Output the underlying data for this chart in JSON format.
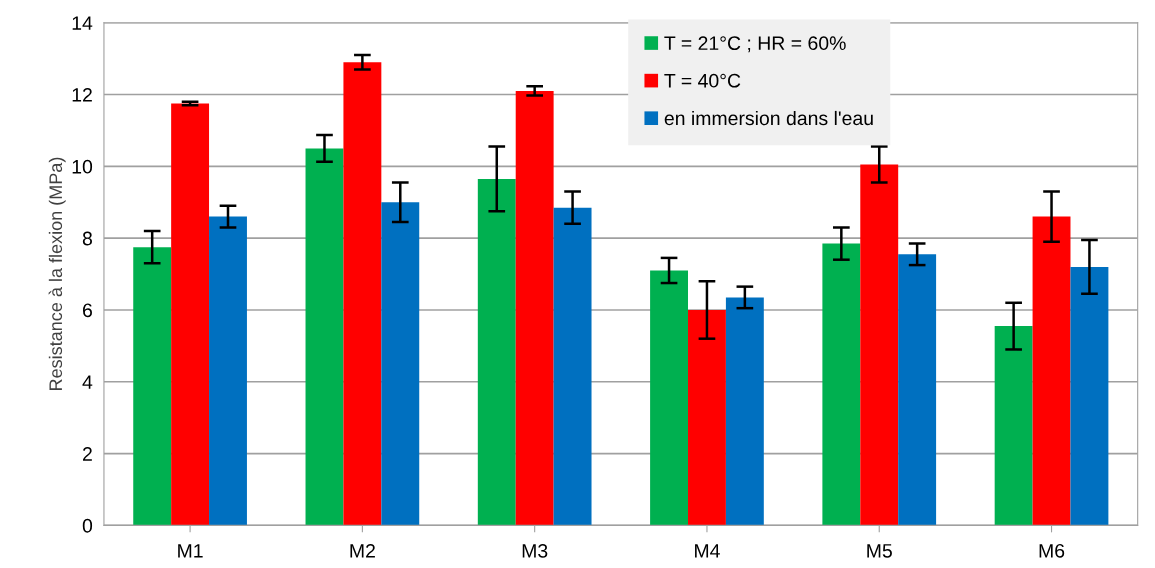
{
  "chart_data": {
    "type": "bar",
    "ylabel": "Resistance à la flexion (MPa)",
    "categories": [
      "M1",
      "M2",
      "M3",
      "M4",
      "M5",
      "M6"
    ],
    "series": [
      {
        "name": "T = 21°C ; HR = 60%",
        "color": "#00b050",
        "values": [
          7.75,
          10.5,
          9.65,
          7.1,
          7.85,
          5.55
        ],
        "errors": [
          0.45,
          0.37,
          0.9,
          0.35,
          0.45,
          0.65
        ]
      },
      {
        "name": "T = 40°C",
        "color": "#ff0000",
        "values": [
          11.75,
          12.9,
          12.1,
          6.0,
          10.05,
          8.6
        ],
        "errors": [
          0.05,
          0.2,
          0.13,
          0.8,
          0.5,
          0.7
        ]
      },
      {
        "name": "en immersion dans l'eau",
        "color": "#0070c0",
        "values": [
          8.6,
          9.0,
          8.85,
          6.35,
          7.55,
          7.2
        ],
        "errors": [
          0.3,
          0.55,
          0.45,
          0.3,
          0.3,
          0.75
        ]
      }
    ],
    "ylim": [
      0,
      14
    ],
    "yticks": [
      0,
      2,
      4,
      6,
      8,
      10,
      12,
      14
    ],
    "grid": "y",
    "legend": "top right"
  }
}
